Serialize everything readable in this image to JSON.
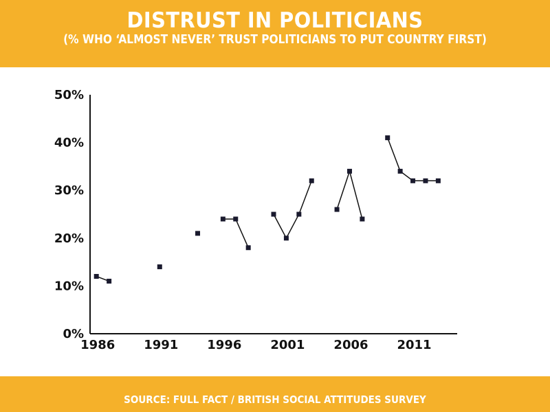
{
  "header": {
    "title": "DISTRUST IN POLITICIANS",
    "subtitle": "(% WHO ‘ALMOST NEVER’ TRUST POLITICIANS TO PUT COUNTRY FIRST)"
  },
  "footer": {
    "source": "SOURCE: FULL FACT / BRITISH SOCIAL ATTITUDES SURVEY"
  },
  "colors": {
    "band": "#f5b12a",
    "marker": "#1a1a2e",
    "line": "#111111"
  },
  "chart_data": {
    "type": "line",
    "title": "DISTRUST IN POLITICIANS",
    "subtitle": "(% WHO ‘ALMOST NEVER’ TRUST POLITICIANS TO PUT COUNTRY FIRST)",
    "xlabel": "",
    "ylabel": "",
    "xlim": [
      1985.5,
      2014.5
    ],
    "ylim": [
      0,
      50
    ],
    "x_ticks": [
      1986,
      1991,
      1996,
      2001,
      2006,
      2011
    ],
    "y_ticks": [
      0,
      10,
      20,
      30,
      40,
      50
    ],
    "y_tick_labels": [
      "0%",
      "10%",
      "20%",
      "30%",
      "40%",
      "50%"
    ],
    "grid": false,
    "series": [
      {
        "values": [
          {
            "x": 1986,
            "y": 12
          },
          {
            "x": 1987,
            "y": 11
          },
          {
            "x": 1991,
            "y": 14
          },
          {
            "x": 1994,
            "y": 21
          },
          {
            "x": 1996,
            "y": 24
          },
          {
            "x": 1997,
            "y": 24
          },
          {
            "x": 1998,
            "y": 18
          },
          {
            "x": 2000,
            "y": 25
          },
          {
            "x": 2001,
            "y": 20
          },
          {
            "x": 2002,
            "y": 25
          },
          {
            "x": 2003,
            "y": 32
          },
          {
            "x": 2005,
            "y": 26
          },
          {
            "x": 2006,
            "y": 34
          },
          {
            "x": 2007,
            "y": 24
          },
          {
            "x": 2009,
            "y": 41
          },
          {
            "x": 2010,
            "y": 34
          },
          {
            "x": 2011,
            "y": 32
          },
          {
            "x": 2012,
            "y": 32
          },
          {
            "x": 2013,
            "y": 32
          }
        ],
        "connected_segments": [
          [
            1986,
            1987
          ],
          [
            1996,
            1998
          ],
          [
            2000,
            2003
          ],
          [
            2005,
            2007
          ],
          [
            2009,
            2013
          ]
        ]
      }
    ],
    "source": "SOURCE: FULL FACT / BRITISH SOCIAL ATTITUDES SURVEY"
  }
}
